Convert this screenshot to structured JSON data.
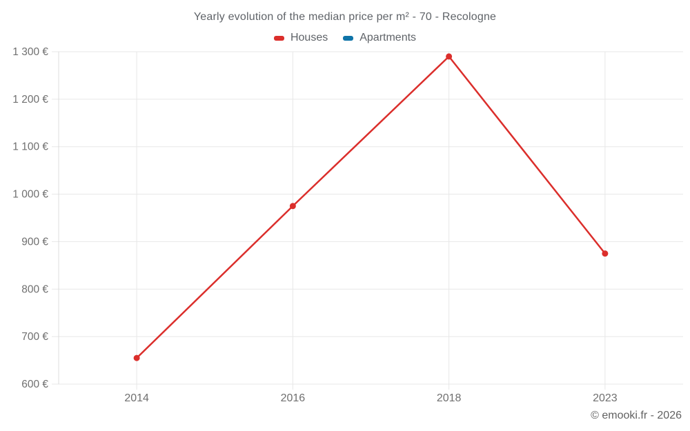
{
  "header": {
    "title": "Yearly evolution of the median price per m² - 70 - Recologne"
  },
  "legend": {
    "items": [
      {
        "label": "Houses",
        "color": "#db2e2b"
      },
      {
        "label": "Apartments",
        "color": "#0f74a8"
      }
    ]
  },
  "chart_data": {
    "type": "line",
    "title": "Yearly evolution of the median price per m² - 70 - Recologne",
    "categories": [
      "2014",
      "2016",
      "2018",
      "2023"
    ],
    "series": [
      {
        "name": "Houses",
        "color": "#db2e2b",
        "values": [
          655,
          975,
          1290,
          875
        ]
      },
      {
        "name": "Apartments",
        "color": "#0f74a8",
        "values": []
      }
    ],
    "xlabel": "",
    "ylabel": "",
    "ylim": [
      600,
      1300
    ],
    "ytick_step": 100,
    "ytick_suffix": " €",
    "grid": true,
    "legend_position": "top",
    "colors": {
      "grid_line": "#e7e7e7",
      "axis_line": "#dcdcdc",
      "tick_label": "#6f6f6f"
    }
  },
  "footer": {
    "attribution": "© emooki.fr - 2026"
  }
}
